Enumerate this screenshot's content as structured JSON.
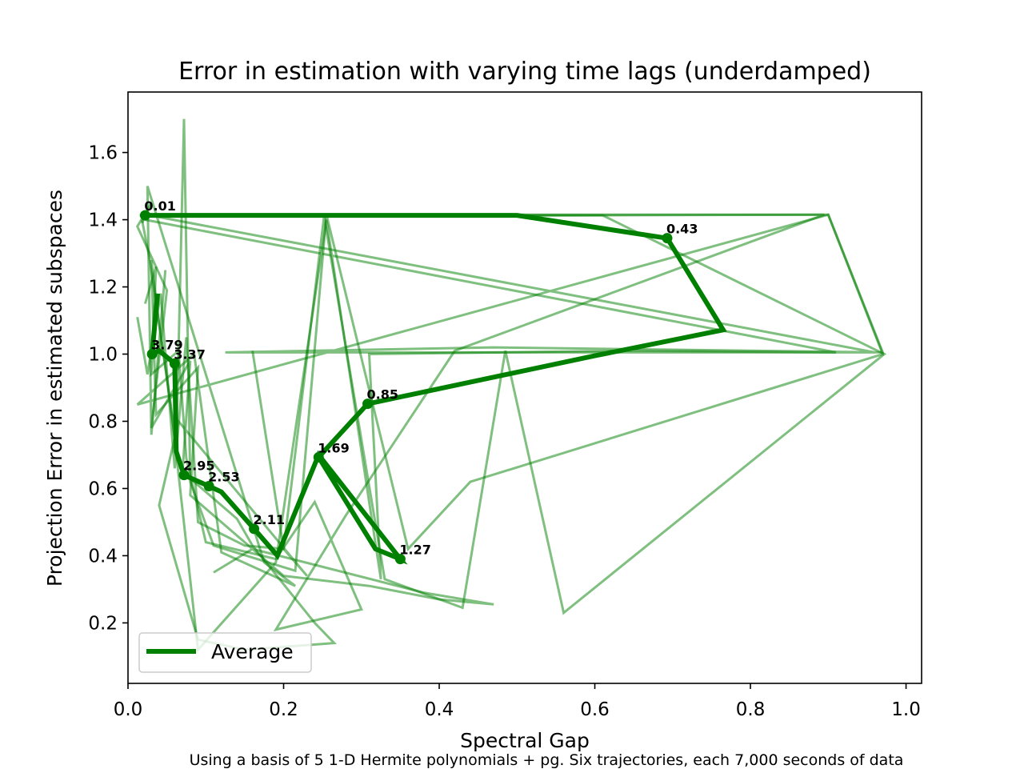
{
  "chart_data": {
    "type": "line",
    "title": "Error in estimation with varying time lags (underdamped)",
    "xlabel": "Spectral Gap",
    "ylabel": "Projection Error in estimated subspaces",
    "xlim": [
      0.0,
      1.02
    ],
    "ylim": [
      0.02,
      1.78
    ],
    "xticks": [
      0.0,
      0.2,
      0.4,
      0.6,
      0.8,
      1.0
    ],
    "xtick_labels": [
      "0.0",
      "0.2",
      "0.4",
      "0.6",
      "0.8",
      "1.0"
    ],
    "yticks": [
      0.2,
      0.4,
      0.6,
      0.8,
      1.0,
      1.2,
      1.4,
      1.6
    ],
    "ytick_labels": [
      "0.2",
      "0.4",
      "0.6",
      "0.8",
      "1.0",
      "1.2",
      "1.4",
      "1.6"
    ],
    "grid": false,
    "legend": {
      "position": "lower-left",
      "entries": [
        "Average"
      ]
    },
    "colors": {
      "line": "#008000",
      "thin_alpha": 0.5
    },
    "average": {
      "name": "Average",
      "points": [
        {
          "x": 0.022,
          "y": 1.413
        },
        {
          "x": 0.5,
          "y": 1.413
        },
        {
          "x": 0.65,
          "y": 1.36
        },
        {
          "x": 0.693,
          "y": 1.345
        },
        {
          "x": 0.765,
          "y": 1.072
        },
        {
          "x": 0.6,
          "y": 0.995
        },
        {
          "x": 0.308,
          "y": 0.852
        },
        {
          "x": 0.245,
          "y": 0.693
        },
        {
          "x": 0.318,
          "y": 0.42
        },
        {
          "x": 0.35,
          "y": 0.39
        },
        {
          "x": 0.245,
          "y": 0.7
        },
        {
          "x": 0.192,
          "y": 0.4
        },
        {
          "x": 0.162,
          "y": 0.48
        },
        {
          "x": 0.12,
          "y": 0.59
        },
        {
          "x": 0.104,
          "y": 0.607
        },
        {
          "x": 0.072,
          "y": 0.64
        },
        {
          "x": 0.062,
          "y": 0.71
        },
        {
          "x": 0.06,
          "y": 0.972
        },
        {
          "x": 0.04,
          "y": 1.01
        },
        {
          "x": 0.031,
          "y": 1.0
        },
        {
          "x": 0.038,
          "y": 1.18
        }
      ],
      "labels": [
        {
          "x": 0.022,
          "y": 1.413,
          "text": "0.01"
        },
        {
          "x": 0.693,
          "y": 1.345,
          "text": "0.43"
        },
        {
          "x": 0.308,
          "y": 0.852,
          "text": "0.85"
        },
        {
          "x": 0.35,
          "y": 0.39,
          "text": "1.27"
        },
        {
          "x": 0.245,
          "y": 0.693,
          "text": "1.69"
        },
        {
          "x": 0.162,
          "y": 0.48,
          "text": "2.11"
        },
        {
          "x": 0.104,
          "y": 0.607,
          "text": "2.53"
        },
        {
          "x": 0.072,
          "y": 0.64,
          "text": "2.95"
        },
        {
          "x": 0.06,
          "y": 0.972,
          "text": "3.37"
        },
        {
          "x": 0.031,
          "y": 1.0,
          "text": "3.79"
        }
      ]
    },
    "trajectories": [
      {
        "points": [
          {
            "x": 0.015,
            "y": 1.413
          },
          {
            "x": 0.61,
            "y": 1.413
          },
          {
            "x": 0.972,
            "y": 1.0
          },
          {
            "x": 0.56,
            "y": 0.23
          },
          {
            "x": 0.485,
            "y": 1.01
          },
          {
            "x": 0.43,
            "y": 0.245
          },
          {
            "x": 0.33,
            "y": 0.33
          },
          {
            "x": 0.252,
            "y": 1.41
          },
          {
            "x": 0.2,
            "y": 0.42
          },
          {
            "x": 0.15,
            "y": 0.43
          },
          {
            "x": 0.09,
            "y": 0.5
          },
          {
            "x": 0.075,
            "y": 1.05
          },
          {
            "x": 0.06,
            "y": 0.66
          },
          {
            "x": 0.042,
            "y": 1.18
          },
          {
            "x": 0.025,
            "y": 0.94
          },
          {
            "x": 0.012,
            "y": 1.11
          }
        ]
      },
      {
        "points": [
          {
            "x": 0.02,
            "y": 1.41
          },
          {
            "x": 0.9,
            "y": 1.415
          },
          {
            "x": 0.97,
            "y": 1.0
          },
          {
            "x": 0.44,
            "y": 0.62
          },
          {
            "x": 0.36,
            "y": 0.42
          },
          {
            "x": 0.255,
            "y": 1.415
          },
          {
            "x": 0.215,
            "y": 0.355
          },
          {
            "x": 0.11,
            "y": 0.43
          },
          {
            "x": 0.08,
            "y": 0.62
          },
          {
            "x": 0.072,
            "y": 1.7
          },
          {
            "x": 0.062,
            "y": 0.72
          },
          {
            "x": 0.045,
            "y": 1.01
          },
          {
            "x": 0.028,
            "y": 1.28
          },
          {
            "x": 0.018,
            "y": 1.4
          }
        ]
      },
      {
        "points": [
          {
            "x": 0.035,
            "y": 1.41
          },
          {
            "x": 0.96,
            "y": 1.005
          },
          {
            "x": 0.125,
            "y": 1.005
          },
          {
            "x": 0.47,
            "y": 1.02
          },
          {
            "x": 0.97,
            "y": 1.005
          },
          {
            "x": 0.9,
            "y": 1.415
          },
          {
            "x": 0.012,
            "y": 0.85
          },
          {
            "x": 0.085,
            "y": 1.0
          },
          {
            "x": 0.12,
            "y": 0.41
          },
          {
            "x": 0.215,
            "y": 0.31
          },
          {
            "x": 0.175,
            "y": 0.38
          },
          {
            "x": 0.025,
            "y": 1.5
          },
          {
            "x": 0.03,
            "y": 0.76
          },
          {
            "x": 0.048,
            "y": 1.25
          }
        ]
      },
      {
        "points": [
          {
            "x": 0.022,
            "y": 1.4
          },
          {
            "x": 0.91,
            "y": 1.005
          },
          {
            "x": 0.64,
            "y": 1.01
          },
          {
            "x": 0.31,
            "y": 1.0
          },
          {
            "x": 0.325,
            "y": 0.33
          },
          {
            "x": 0.255,
            "y": 1.4
          },
          {
            "x": 0.19,
            "y": 0.38
          },
          {
            "x": 0.09,
            "y": 0.12
          },
          {
            "x": 0.055,
            "y": 0.85
          },
          {
            "x": 0.04,
            "y": 1.09
          },
          {
            "x": 0.03,
            "y": 1.28
          },
          {
            "x": 0.036,
            "y": 0.82
          },
          {
            "x": 0.09,
            "y": 0.96
          },
          {
            "x": 0.08,
            "y": 0.58
          },
          {
            "x": 0.2,
            "y": 0.34
          },
          {
            "x": 0.31,
            "y": 0.31
          },
          {
            "x": 0.4,
            "y": 0.27
          },
          {
            "x": 0.47,
            "y": 0.255
          },
          {
            "x": 0.38,
            "y": 0.29
          },
          {
            "x": 0.16,
            "y": 0.42
          },
          {
            "x": 0.11,
            "y": 0.35
          }
        ]
      },
      {
        "points": [
          {
            "x": 0.018,
            "y": 1.39
          },
          {
            "x": 0.03,
            "y": 1.45
          },
          {
            "x": 0.012,
            "y": 1.38
          },
          {
            "x": 0.05,
            "y": 1.19
          },
          {
            "x": 0.03,
            "y": 0.78
          },
          {
            "x": 0.08,
            "y": 0.98
          },
          {
            "x": 0.07,
            "y": 0.65
          },
          {
            "x": 0.14,
            "y": 0.51
          },
          {
            "x": 0.16,
            "y": 0.43
          },
          {
            "x": 0.24,
            "y": 0.2
          },
          {
            "x": 0.265,
            "y": 0.14
          },
          {
            "x": 0.15,
            "y": 0.12
          },
          {
            "x": 0.09,
            "y": 0.15
          },
          {
            "x": 0.04,
            "y": 0.55
          },
          {
            "x": 0.065,
            "y": 0.8
          },
          {
            "x": 0.23,
            "y": 0.34
          },
          {
            "x": 0.2,
            "y": 0.42
          },
          {
            "x": 0.16,
            "y": 1.01
          }
        ]
      },
      {
        "points": [
          {
            "x": 0.025,
            "y": 1.415
          },
          {
            "x": 0.895,
            "y": 1.415
          },
          {
            "x": 0.42,
            "y": 1.01
          },
          {
            "x": 0.28,
            "y": 0.52
          },
          {
            "x": 0.19,
            "y": 0.18
          },
          {
            "x": 0.3,
            "y": 0.24
          },
          {
            "x": 0.24,
            "y": 0.56
          },
          {
            "x": 0.19,
            "y": 0.39
          },
          {
            "x": 0.1,
            "y": 0.44
          },
          {
            "x": 0.075,
            "y": 0.69
          },
          {
            "x": 0.065,
            "y": 1.01
          },
          {
            "x": 0.03,
            "y": 0.94
          },
          {
            "x": 0.036,
            "y": 1.26
          },
          {
            "x": 0.022,
            "y": 1.15
          }
        ]
      }
    ]
  },
  "caption": "Using a basis of 5 1-D Hermite polynomials + pg. Six trajectories, each 7,000 seconds of data"
}
